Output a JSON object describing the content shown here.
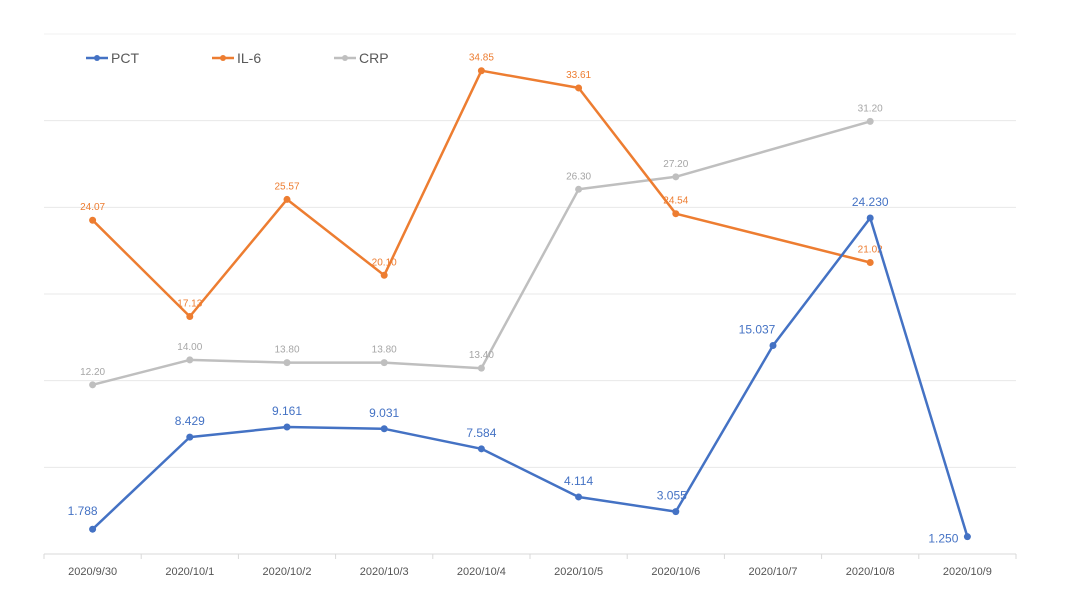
{
  "chart_data": {
    "type": "line",
    "categories": [
      "2020/9/30",
      "2020/10/1",
      "2020/10/2",
      "2020/10/3",
      "2020/10/4",
      "2020/10/5",
      "2020/10/6",
      "2020/10/7",
      "2020/10/8",
      "2020/10/9"
    ],
    "ylim": [
      0,
      37.5
    ],
    "grid": true,
    "legend_position": "top-left",
    "series": [
      {
        "name": "PCT",
        "color": "#4472C4",
        "values": [
          1.788,
          8.429,
          9.161,
          9.031,
          7.584,
          4.114,
          3.055,
          15.037,
          24.23,
          1.25
        ],
        "labels": [
          "1.788",
          "8.429",
          "9.161",
          "9.031",
          "7.584",
          "4.114",
          "3.055",
          "15.037",
          "24.230",
          "1.250"
        ]
      },
      {
        "name": "IL-6",
        "color": "#ED7D31",
        "values": [
          24.07,
          17.13,
          25.57,
          20.1,
          34.85,
          33.61,
          24.54,
          null,
          21.02,
          null
        ],
        "labels": [
          "24.07",
          "17.13",
          "25.57",
          "20.10",
          "34.85",
          "33.61",
          "24.54",
          "",
          "21.02",
          ""
        ]
      },
      {
        "name": "CRP",
        "color": "#BFBFBF",
        "labels_color": "#A6A6A6",
        "values": [
          12.2,
          14.0,
          13.8,
          13.8,
          13.4,
          26.3,
          27.2,
          null,
          31.2,
          null
        ],
        "labels": [
          "12.20",
          "14.00",
          "13.80",
          "13.80",
          "13.40",
          "26.30",
          "27.20",
          "",
          "31.20",
          ""
        ]
      }
    ]
  }
}
